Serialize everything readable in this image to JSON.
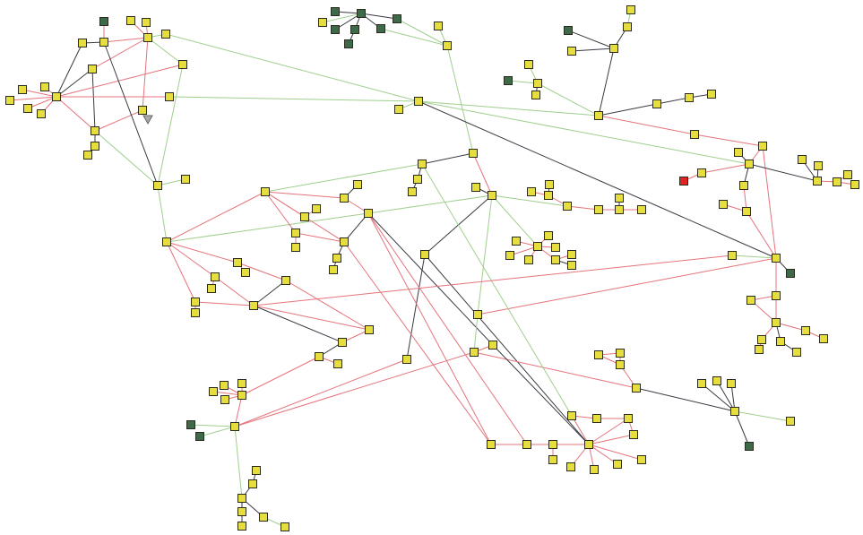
{
  "colors": {
    "node_default": "#e6dd3f",
    "node_group": "#3e6a4a",
    "node_alert": "#e02424",
    "node_stroke": "#2b2b20",
    "marker": "#a9a9a9",
    "edge_red": "#e5737c",
    "edge_green": "#9fcf8e",
    "edge_black": "#3a3a44"
  },
  "nodes": [
    {
      "id": "n1",
      "kind": "group"
    },
    {
      "id": "n2",
      "kind": "default"
    },
    {
      "id": "n3",
      "kind": "default"
    },
    {
      "id": "n4",
      "kind": "default"
    },
    {
      "id": "n5",
      "kind": "default"
    },
    {
      "id": "n6",
      "kind": "default"
    },
    {
      "id": "n7",
      "kind": "default"
    },
    {
      "id": "n8",
      "kind": "default"
    },
    {
      "id": "n9",
      "kind": "default"
    },
    {
      "id": "n10",
      "kind": "default"
    },
    {
      "id": "n11",
      "kind": "default"
    },
    {
      "id": "n12",
      "kind": "default"
    },
    {
      "id": "n13",
      "kind": "default"
    },
    {
      "id": "n14",
      "kind": "default"
    },
    {
      "id": "n15",
      "kind": "default"
    },
    {
      "id": "n16",
      "kind": "default"
    },
    {
      "id": "n17",
      "kind": "default"
    },
    {
      "id": "n18",
      "kind": "default"
    },
    {
      "id": "n19",
      "kind": "default"
    },
    {
      "id": "n20",
      "kind": "default"
    },
    {
      "id": "n21",
      "kind": "default"
    },
    {
      "id": "n22",
      "kind": "default"
    },
    {
      "id": "n23",
      "kind": "default"
    },
    {
      "id": "n24",
      "kind": "default"
    },
    {
      "id": "n25",
      "kind": "default"
    },
    {
      "id": "n26",
      "kind": "default"
    },
    {
      "id": "n27",
      "kind": "default"
    },
    {
      "id": "n28",
      "kind": "default"
    },
    {
      "id": "n29",
      "kind": "default"
    },
    {
      "id": "n30",
      "kind": "default"
    },
    {
      "id": "n31",
      "kind": "default"
    },
    {
      "id": "n32",
      "kind": "default"
    },
    {
      "id": "g1",
      "kind": "group"
    },
    {
      "id": "g2",
      "kind": "group"
    },
    {
      "id": "g3",
      "kind": "default"
    },
    {
      "id": "g4",
      "kind": "group"
    },
    {
      "id": "g5",
      "kind": "group"
    },
    {
      "id": "g6",
      "kind": "group"
    },
    {
      "id": "g7",
      "kind": "group"
    },
    {
      "id": "g8",
      "kind": "group"
    },
    {
      "id": "g9",
      "kind": "default"
    },
    {
      "id": "g10",
      "kind": "default"
    },
    {
      "id": "a1",
      "kind": "default"
    },
    {
      "id": "a2",
      "kind": "default"
    },
    {
      "id": "a3",
      "kind": "default"
    },
    {
      "id": "a4",
      "kind": "group"
    },
    {
      "id": "a5",
      "kind": "default"
    },
    {
      "id": "a6",
      "kind": "default"
    },
    {
      "id": "a7",
      "kind": "default"
    },
    {
      "id": "a8",
      "kind": "group"
    },
    {
      "id": "a9",
      "kind": "default"
    },
    {
      "id": "a10",
      "kind": "default"
    },
    {
      "id": "a11",
      "kind": "default"
    },
    {
      "id": "a12",
      "kind": "default"
    },
    {
      "id": "a13",
      "kind": "default"
    },
    {
      "id": "a14",
      "kind": "default"
    },
    {
      "id": "a15",
      "kind": "default"
    },
    {
      "id": "a16",
      "kind": "default"
    },
    {
      "id": "a17",
      "kind": "default"
    },
    {
      "id": "a18",
      "kind": "default"
    },
    {
      "id": "a19",
      "kind": "alert"
    },
    {
      "id": "a20",
      "kind": "default"
    },
    {
      "id": "a21",
      "kind": "default"
    },
    {
      "id": "a22",
      "kind": "default"
    },
    {
      "id": "a23",
      "kind": "default"
    },
    {
      "id": "a24",
      "kind": "default"
    },
    {
      "id": "a25",
      "kind": "default"
    },
    {
      "id": "a26",
      "kind": "default"
    },
    {
      "id": "a27",
      "kind": "default"
    },
    {
      "id": "a28",
      "kind": "default"
    },
    {
      "id": "a29",
      "kind": "default"
    },
    {
      "id": "a30",
      "kind": "default"
    },
    {
      "id": "a31",
      "kind": "group"
    },
    {
      "id": "a32",
      "kind": "default"
    },
    {
      "id": "a33",
      "kind": "default"
    },
    {
      "id": "a34",
      "kind": "default"
    },
    {
      "id": "a35",
      "kind": "default"
    },
    {
      "id": "a36",
      "kind": "default"
    },
    {
      "id": "a37",
      "kind": "default"
    },
    {
      "id": "a38",
      "kind": "default"
    },
    {
      "id": "a39",
      "kind": "default"
    },
    {
      "id": "a40",
      "kind": "default"
    },
    {
      "id": "c1",
      "kind": "default"
    },
    {
      "id": "c2",
      "kind": "default"
    },
    {
      "id": "c3",
      "kind": "default"
    },
    {
      "id": "c4",
      "kind": "default"
    },
    {
      "id": "c5",
      "kind": "default"
    },
    {
      "id": "c6",
      "kind": "default"
    },
    {
      "id": "c10",
      "kind": "default"
    },
    {
      "id": "c11",
      "kind": "default"
    },
    {
      "id": "c12",
      "kind": "default"
    },
    {
      "id": "c13",
      "kind": "default"
    },
    {
      "id": "c20",
      "kind": "default"
    },
    {
      "id": "c21",
      "kind": "default"
    },
    {
      "id": "c22",
      "kind": "default"
    },
    {
      "id": "d1",
      "kind": "default"
    },
    {
      "id": "d2",
      "kind": "default"
    },
    {
      "id": "d3",
      "kind": "default"
    },
    {
      "id": "d4",
      "kind": "default"
    },
    {
      "id": "d5",
      "kind": "default"
    },
    {
      "id": "d6",
      "kind": "default"
    },
    {
      "id": "d7",
      "kind": "default"
    },
    {
      "id": "d8",
      "kind": "default"
    },
    {
      "id": "e1",
      "kind": "default"
    },
    {
      "id": "e2",
      "kind": "default"
    },
    {
      "id": "e3",
      "kind": "default"
    },
    {
      "id": "e4",
      "kind": "default"
    },
    {
      "id": "e5",
      "kind": "default"
    },
    {
      "id": "e6",
      "kind": "default"
    },
    {
      "id": "e7",
      "kind": "default"
    },
    {
      "id": "e8",
      "kind": "default"
    },
    {
      "id": "e9",
      "kind": "default"
    },
    {
      "id": "f1",
      "kind": "default"
    },
    {
      "id": "f2",
      "kind": "default"
    },
    {
      "id": "h1",
      "kind": "default"
    },
    {
      "id": "h2",
      "kind": "default"
    },
    {
      "id": "h3",
      "kind": "default"
    },
    {
      "id": "h4",
      "kind": "default"
    },
    {
      "id": "h5",
      "kind": "default"
    },
    {
      "id": "h6",
      "kind": "default"
    },
    {
      "id": "h7",
      "kind": "default"
    },
    {
      "id": "h8",
      "kind": "default"
    },
    {
      "id": "h9",
      "kind": "default"
    },
    {
      "id": "h10",
      "kind": "group"
    },
    {
      "id": "j0",
      "kind": "default"
    },
    {
      "id": "j1",
      "kind": "default"
    },
    {
      "id": "j2",
      "kind": "default"
    },
    {
      "id": "j3",
      "kind": "default"
    },
    {
      "id": "j4",
      "kind": "default"
    },
    {
      "id": "j5",
      "kind": "default"
    },
    {
      "id": "j6",
      "kind": "default"
    },
    {
      "id": "j7",
      "kind": "default"
    },
    {
      "id": "j8",
      "kind": "default"
    },
    {
      "id": "j9",
      "kind": "default"
    },
    {
      "id": "j10",
      "kind": "default"
    },
    {
      "id": "j11",
      "kind": "default"
    },
    {
      "id": "j12",
      "kind": "default"
    },
    {
      "id": "m1",
      "kind": "default"
    },
    {
      "id": "m1b",
      "kind": "default"
    },
    {
      "id": "m2",
      "kind": "default"
    },
    {
      "id": "m2b",
      "kind": "default"
    },
    {
      "id": "m3",
      "kind": "default"
    },
    {
      "id": "m4",
      "kind": "default"
    },
    {
      "id": "p1",
      "kind": "default"
    },
    {
      "id": "p2",
      "kind": "default"
    },
    {
      "id": "p3",
      "kind": "default"
    },
    {
      "id": "p4",
      "kind": "default"
    },
    {
      "id": "p5",
      "kind": "default"
    },
    {
      "id": "q1",
      "kind": "default"
    },
    {
      "id": "q2",
      "kind": "default"
    },
    {
      "id": "q3",
      "kind": "default"
    },
    {
      "id": "q4",
      "kind": "default"
    },
    {
      "id": "q5",
      "kind": "default"
    },
    {
      "id": "q6",
      "kind": "default"
    },
    {
      "id": "q7",
      "kind": "group"
    },
    {
      "id": "q8",
      "kind": "group"
    },
    {
      "id": "r1",
      "kind": "default"
    },
    {
      "id": "r2",
      "kind": "default"
    },
    {
      "id": "r3",
      "kind": "default"
    },
    {
      "id": "r4",
      "kind": "default"
    },
    {
      "id": "r5",
      "kind": "default"
    },
    {
      "id": "r6",
      "kind": "default"
    },
    {
      "id": "r7",
      "kind": "default"
    },
    {
      "id": "t1",
      "kind": "marker"
    }
  ],
  "edges": [
    [
      "n1",
      "n3",
      "red"
    ],
    [
      "n2",
      "n3",
      "black"
    ],
    [
      "n3",
      "n6",
      "red"
    ],
    [
      "n4",
      "n6",
      "red"
    ],
    [
      "n5",
      "n6",
      "red"
    ],
    [
      "n6",
      "n7",
      "green"
    ],
    [
      "n2",
      "n10",
      "black"
    ],
    [
      "n8",
      "n10",
      "black"
    ],
    [
      "n8",
      "n18",
      "black"
    ],
    [
      "n6",
      "n8",
      "red"
    ],
    [
      "n10",
      "n9",
      "red"
    ],
    [
      "n10",
      "n16",
      "red"
    ],
    [
      "n10",
      "n11",
      "red"
    ],
    [
      "n10",
      "n12",
      "red"
    ],
    [
      "n10",
      "n13",
      "red"
    ],
    [
      "n10",
      "n14",
      "red"
    ],
    [
      "n10",
      "n15",
      "red"
    ],
    [
      "n10",
      "n18",
      "red"
    ],
    [
      "n6",
      "n17",
      "red"
    ],
    [
      "n17",
      "n18",
      "red"
    ],
    [
      "n18",
      "n19",
      "black"
    ],
    [
      "n19",
      "n20",
      "black"
    ],
    [
      "n6",
      "n9",
      "green"
    ],
    [
      "n3",
      "n21",
      "black"
    ],
    [
      "n18",
      "n21",
      "green"
    ],
    [
      "n9",
      "n21",
      "green"
    ],
    [
      "n21",
      "n22",
      "green"
    ],
    [
      "n21",
      "n23",
      "green"
    ],
    [
      "n7",
      "n30",
      "green"
    ],
    [
      "n16",
      "n30",
      "green"
    ],
    [
      "n30",
      "n31",
      "green"
    ],
    [
      "g1",
      "g2",
      "black"
    ],
    [
      "g1",
      "g3",
      "green"
    ],
    [
      "g1",
      "g4",
      "black"
    ],
    [
      "g1",
      "g5",
      "black"
    ],
    [
      "g5",
      "g6",
      "black"
    ],
    [
      "g1",
      "g7",
      "black"
    ],
    [
      "g1",
      "g8",
      "black"
    ],
    [
      "g8",
      "g10",
      "green"
    ],
    [
      "g7",
      "g10",
      "green"
    ],
    [
      "g9",
      "g10",
      "green"
    ],
    [
      "g10",
      "c1",
      "green"
    ],
    [
      "n30",
      "a6",
      "green"
    ],
    [
      "n30",
      "a16",
      "green"
    ],
    [
      "n30",
      "a23",
      "black"
    ],
    [
      "a1",
      "a2",
      "green"
    ],
    [
      "a2",
      "a3",
      "black"
    ],
    [
      "a3",
      "a4",
      "black"
    ],
    [
      "a3",
      "a5",
      "black"
    ],
    [
      "a3",
      "a6",
      "black"
    ],
    [
      "a7",
      "a9",
      "green"
    ],
    [
      "a8",
      "a9",
      "green"
    ],
    [
      "a9",
      "a10",
      "black"
    ],
    [
      "a9",
      "a6",
      "green"
    ],
    [
      "a6",
      "a11",
      "black"
    ],
    [
      "a11",
      "a12",
      "black"
    ],
    [
      "a12",
      "a13",
      "black"
    ],
    [
      "a6",
      "a14",
      "red"
    ],
    [
      "a14",
      "a15",
      "red"
    ],
    [
      "a15",
      "a16",
      "red"
    ],
    [
      "a17",
      "a16",
      "black"
    ],
    [
      "a16",
      "a18",
      "red"
    ],
    [
      "a18",
      "a19",
      "red"
    ],
    [
      "a16",
      "a20",
      "black"
    ],
    [
      "a20",
      "a22",
      "red"
    ],
    [
      "a21",
      "a22",
      "red"
    ],
    [
      "a22",
      "a23",
      "red"
    ],
    [
      "a15",
      "a23",
      "red"
    ],
    [
      "a16",
      "a24",
      "black"
    ],
    [
      "a24",
      "a25",
      "black"
    ],
    [
      "a24",
      "a26",
      "black"
    ],
    [
      "a24",
      "a27",
      "red"
    ],
    [
      "a27",
      "a28",
      "red"
    ],
    [
      "a27",
      "a29",
      "red"
    ],
    [
      "a23",
      "a30",
      "green"
    ],
    [
      "a23",
      "a31",
      "black"
    ],
    [
      "a23",
      "a32",
      "red"
    ],
    [
      "a33",
      "a32",
      "red"
    ],
    [
      "a32",
      "a34",
      "red"
    ],
    [
      "a33",
      "a34",
      "red"
    ],
    [
      "a34",
      "a35",
      "red"
    ],
    [
      "a35",
      "a36",
      "red"
    ],
    [
      "a34",
      "a37",
      "black"
    ],
    [
      "a37",
      "a38",
      "black"
    ],
    [
      "a34",
      "a39",
      "red"
    ],
    [
      "a39",
      "a40",
      "red"
    ],
    [
      "c1",
      "c2",
      "black"
    ],
    [
      "c2",
      "c3",
      "black"
    ],
    [
      "c3",
      "c4",
      "black"
    ],
    [
      "n24",
      "c2",
      "green"
    ],
    [
      "c1",
      "c5",
      "red"
    ],
    [
      "c5",
      "c6",
      "black"
    ],
    [
      "n23",
      "c10",
      "green"
    ],
    [
      "c10",
      "c5",
      "green"
    ],
    [
      "c5",
      "d1",
      "green"
    ],
    [
      "d1",
      "d2",
      "red"
    ],
    [
      "d2",
      "d3",
      "red"
    ],
    [
      "d2",
      "d4",
      "black"
    ],
    [
      "d1",
      "d5",
      "red"
    ],
    [
      "d5",
      "d6",
      "red"
    ],
    [
      "d6",
      "d7",
      "red"
    ],
    [
      "d6",
      "d8",
      "black"
    ],
    [
      "c5",
      "e1",
      "green"
    ],
    [
      "e1",
      "e2",
      "red"
    ],
    [
      "e1",
      "e3",
      "red"
    ],
    [
      "e1",
      "e4",
      "red"
    ],
    [
      "e1",
      "e5",
      "red"
    ],
    [
      "e1",
      "e6",
      "red"
    ],
    [
      "e1",
      "e7",
      "red"
    ],
    [
      "e7",
      "e8",
      "red"
    ],
    [
      "e7",
      "e9",
      "black"
    ],
    [
      "c5",
      "f1",
      "black"
    ],
    [
      "f1",
      "f2",
      "black"
    ],
    [
      "f1",
      "j0",
      "black"
    ],
    [
      "c10",
      "c20",
      "black"
    ],
    [
      "c5",
      "c22",
      "green"
    ],
    [
      "c22",
      "c21",
      "green"
    ],
    [
      "c22",
      "a23",
      "red"
    ],
    [
      "c21",
      "c20",
      "red"
    ],
    [
      "c21",
      "h1",
      "red"
    ],
    [
      "h1",
      "h2",
      "red"
    ],
    [
      "h2",
      "h3",
      "red"
    ],
    [
      "h2",
      "h4",
      "red"
    ],
    [
      "h3",
      "h4",
      "red"
    ],
    [
      "h1",
      "h5",
      "black"
    ],
    [
      "h5",
      "h6",
      "black"
    ],
    [
      "h5",
      "h7",
      "black"
    ],
    [
      "h5",
      "h8",
      "black"
    ],
    [
      "h5",
      "h9",
      "green"
    ],
    [
      "h5",
      "h10",
      "black"
    ],
    [
      "c20",
      "j0",
      "black"
    ],
    [
      "c2",
      "j1",
      "green"
    ],
    [
      "j0",
      "j1",
      "red"
    ],
    [
      "j1",
      "j2",
      "red"
    ],
    [
      "j2",
      "j3",
      "red"
    ],
    [
      "j0",
      "j3",
      "red"
    ],
    [
      "j3",
      "j4",
      "red"
    ],
    [
      "j0",
      "j4",
      "red"
    ],
    [
      "j0",
      "j5",
      "red"
    ],
    [
      "j0",
      "j6",
      "red"
    ],
    [
      "j0",
      "j7",
      "red"
    ],
    [
      "j0",
      "j8",
      "red"
    ],
    [
      "j0",
      "j9",
      "red"
    ],
    [
      "j9",
      "j10",
      "red"
    ],
    [
      "j9",
      "j11",
      "red"
    ],
    [
      "j11",
      "j12",
      "red"
    ],
    [
      "c11",
      "j12",
      "red"
    ],
    [
      "c10",
      "j12",
      "red"
    ],
    [
      "c10",
      "j11",
      "red"
    ],
    [
      "n24",
      "n25",
      "red"
    ],
    [
      "n25",
      "n26",
      "black"
    ],
    [
      "n25",
      "c10",
      "red"
    ],
    [
      "n24",
      "n28",
      "red"
    ],
    [
      "n27",
      "n28",
      "red"
    ],
    [
      "n24",
      "n29",
      "red"
    ],
    [
      "n29",
      "n32",
      "red"
    ],
    [
      "n29",
      "c11",
      "red"
    ],
    [
      "n24",
      "c11",
      "red"
    ],
    [
      "c11",
      "c10",
      "black"
    ],
    [
      "c11",
      "c12",
      "black"
    ],
    [
      "c12",
      "c13",
      "black"
    ],
    [
      "n24",
      "n23",
      "red"
    ],
    [
      "n23",
      "m2",
      "red"
    ],
    [
      "m2",
      "m2b",
      "red"
    ],
    [
      "m2",
      "p1",
      "red"
    ],
    [
      "n23",
      "m1",
      "red"
    ],
    [
      "m1",
      "m1b",
      "red"
    ],
    [
      "m1",
      "p1",
      "red"
    ],
    [
      "n23",
      "m3",
      "red"
    ],
    [
      "m3",
      "m4",
      "red"
    ],
    [
      "m3",
      "p2",
      "red"
    ],
    [
      "p1",
      "p2",
      "black"
    ],
    [
      "p1",
      "p3",
      "red"
    ],
    [
      "p1",
      "p4",
      "black"
    ],
    [
      "p4",
      "p3",
      "red"
    ],
    [
      "p2",
      "p3",
      "red"
    ],
    [
      "p4",
      "p5",
      "black"
    ],
    [
      "p5",
      "r7",
      "red"
    ],
    [
      "p1",
      "a30",
      "red"
    ],
    [
      "p5",
      "q1",
      "red"
    ],
    [
      "q1",
      "q2",
      "red"
    ],
    [
      "q1",
      "q3",
      "red"
    ],
    [
      "q1",
      "q4",
      "red"
    ],
    [
      "q1",
      "q5",
      "red"
    ],
    [
      "q1",
      "q6",
      "red"
    ],
    [
      "q6",
      "q7",
      "green"
    ],
    [
      "q6",
      "q8",
      "green"
    ],
    [
      "q6",
      "f2",
      "red"
    ],
    [
      "q6",
      "c21",
      "red"
    ],
    [
      "q6",
      "r1",
      "green"
    ],
    [
      "r1",
      "r2",
      "black"
    ],
    [
      "r2",
      "r3",
      "black"
    ],
    [
      "r1",
      "r4",
      "black"
    ],
    [
      "r4",
      "r5",
      "black"
    ],
    [
      "r1",
      "r6",
      "black"
    ],
    [
      "r6",
      "r8x",
      "green"
    ]
  ]
}
